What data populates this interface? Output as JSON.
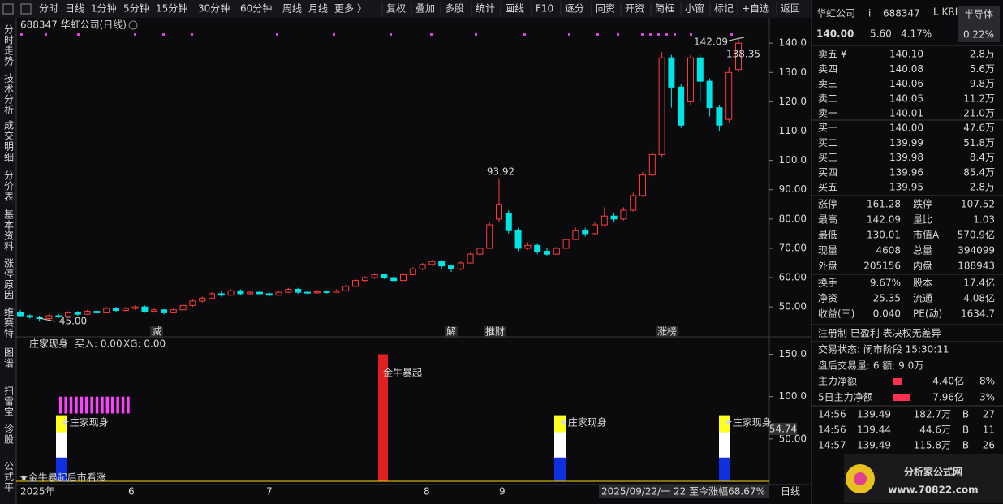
{
  "toolbar": {
    "left": [
      "分时",
      "日线",
      "1分钟",
      "5分钟",
      "15分钟",
      "30分钟",
      "60分钟",
      "周线",
      "月线",
      "更多 〉"
    ],
    "right": [
      "复权",
      "叠加",
      "多股",
      "统计",
      "画线",
      "F10",
      "逐分",
      "同资",
      "开资",
      "简框",
      "小窗",
      "标记",
      "+自选",
      "返回"
    ]
  },
  "side_tabs": [
    "分时走势",
    "技术分析",
    "成交明细",
    "分价表",
    "基本资料",
    "涨停原因",
    "维赛特",
    "图谱",
    "扫雷宝",
    "诊股",
    "公式平"
  ],
  "chart_data": [
    {
      "type": "candlestick",
      "title": "688347 华虹公司(日线)",
      "up_color": "#ff3c3c",
      "down_color": "#00e4e4",
      "ylim": [
        39.8,
        144.2
      ],
      "yticks": [
        {
          "value": 140,
          "label": "140.0"
        },
        {
          "value": 130,
          "label": "130.0"
        },
        {
          "value": 120,
          "label": "120.0"
        },
        {
          "value": 110,
          "label": "110.0"
        },
        {
          "value": 100,
          "label": "100.0"
        },
        {
          "value": 90,
          "label": "90.00"
        },
        {
          "value": 80,
          "label": "80.00"
        },
        {
          "value": 70,
          "label": "70.00"
        },
        {
          "value": 60,
          "label": "60.00"
        },
        {
          "value": 50,
          "label": "50.00"
        }
      ],
      "candles": [
        [
          48,
          47,
          46.5,
          49
        ],
        [
          47,
          46.5,
          46,
          47.5
        ],
        [
          46.5,
          46,
          45,
          47
        ],
        [
          46,
          47,
          45.5,
          47.5
        ],
        [
          47,
          46.8,
          46.2,
          47.6
        ],
        [
          46.8,
          48,
          46.5,
          48.5
        ],
        [
          48,
          47.5,
          47,
          48.6
        ],
        [
          47.5,
          48.5,
          47.2,
          49
        ],
        [
          48.5,
          48,
          47.5,
          49
        ],
        [
          48,
          49.5,
          47.8,
          50
        ],
        [
          49.5,
          48.8,
          48.3,
          50
        ],
        [
          48.8,
          49.5,
          48.5,
          50
        ],
        [
          49.5,
          50,
          49,
          50.5
        ],
        [
          50,
          48.5,
          48,
          50.5
        ],
        [
          48.5,
          49,
          48,
          49.5
        ],
        [
          49,
          48,
          47.5,
          49.3
        ],
        [
          48,
          49,
          47.8,
          49.5
        ],
        [
          49,
          50.5,
          48.8,
          51
        ],
        [
          50.5,
          52,
          50,
          52.5
        ],
        [
          52,
          53,
          51.5,
          53.5
        ],
        [
          53,
          54.5,
          52.8,
          55
        ],
        [
          54.5,
          54,
          53.5,
          55.5
        ],
        [
          54,
          55.5,
          53.8,
          56
        ],
        [
          55.5,
          54.5,
          54,
          56
        ],
        [
          54.5,
          55,
          54,
          55.5
        ],
        [
          55,
          54.5,
          54,
          55.5
        ],
        [
          54.5,
          54,
          53.5,
          55
        ],
        [
          54,
          55,
          53.8,
          55.5
        ],
        [
          55,
          56,
          54.8,
          56.5
        ],
        [
          56,
          55,
          54.5,
          56.5
        ],
        [
          55,
          54.8,
          54.2,
          55.5
        ],
        [
          54.8,
          55.2,
          54.5,
          55.8
        ],
        [
          55.2,
          55,
          54.5,
          55.6
        ],
        [
          55,
          55.5,
          54.8,
          56
        ],
        [
          55.5,
          57,
          55.2,
          57.5
        ],
        [
          57,
          59,
          56.8,
          59.5
        ],
        [
          59,
          60,
          58.5,
          60.5
        ],
        [
          60,
          61,
          59.5,
          61.5
        ],
        [
          61,
          60,
          59.5,
          61.2
        ],
        [
          60,
          59,
          58.5,
          60.5
        ],
        [
          59,
          61,
          58.8,
          61.5
        ],
        [
          61,
          63,
          60.8,
          63.5
        ],
        [
          63,
          64.5,
          62.5,
          65
        ],
        [
          64.5,
          65.5,
          64,
          66
        ],
        [
          65.5,
          64,
          63,
          66
        ],
        [
          64,
          63,
          62,
          64.5
        ],
        [
          63,
          65,
          62.5,
          65.5
        ],
        [
          65,
          68,
          64.8,
          68.5
        ],
        [
          68,
          70,
          67.5,
          71
        ],
        [
          70,
          78,
          69.8,
          79
        ],
        [
          80,
          85,
          79,
          93.92
        ],
        [
          82,
          76,
          75,
          83
        ],
        [
          76,
          70,
          69,
          77
        ],
        [
          70,
          71,
          69.5,
          72
        ],
        [
          71,
          69,
          68,
          71.5
        ],
        [
          69,
          68,
          67.5,
          70
        ],
        [
          68,
          70,
          67.8,
          70.5
        ],
        [
          70,
          73,
          69.8,
          73.5
        ],
        [
          73,
          76,
          72.8,
          77
        ],
        [
          76,
          75,
          74,
          77
        ],
        [
          75,
          78,
          74.8,
          79
        ],
        [
          78,
          81,
          77.5,
          84
        ],
        [
          81,
          80,
          79,
          82
        ],
        [
          80,
          83,
          79.5,
          84
        ],
        [
          83,
          88,
          82.5,
          89
        ],
        [
          88,
          95,
          87.5,
          96
        ],
        [
          95,
          102,
          94.5,
          103
        ],
        [
          102,
          135,
          101,
          137
        ],
        [
          135,
          125,
          118,
          136
        ],
        [
          125,
          112,
          111,
          126
        ],
        [
          120,
          135,
          119,
          136
        ],
        [
          135,
          127,
          120,
          136
        ],
        [
          127,
          118,
          115,
          128
        ],
        [
          118,
          112,
          110,
          119
        ],
        [
          114,
          130,
          113,
          132
        ],
        [
          131,
          140,
          130,
          142.09
        ]
      ],
      "annotations": [
        "93.92",
        "142.09",
        "138.35",
        "45.00"
      ],
      "events": [
        "减",
        "解",
        "推财",
        "涨榜"
      ],
      "x_labels": [
        "2025年",
        "6",
        "7",
        "8",
        "9"
      ]
    },
    {
      "type": "bar",
      "title": "庄家现身",
      "legend": [
        "买入: 0.00",
        "XG: 0.00"
      ],
      "ylim": [
        0,
        161
      ],
      "yticks": [
        {
          "value": 150,
          "label": "150.0"
        },
        {
          "value": 100,
          "label": "100.0"
        },
        {
          "value": 50,
          "label": "50.00"
        }
      ],
      "current": "54.74",
      "pink_bars": [
        [
          80,
          100
        ],
        [
          80,
          100
        ],
        [
          80,
          100
        ],
        [
          80,
          100
        ],
        [
          80,
          100
        ],
        [
          80,
          100
        ],
        [
          80,
          100
        ],
        [
          80,
          100
        ],
        [
          80,
          100
        ],
        [
          80,
          100
        ],
        [
          80,
          100
        ],
        [
          80,
          100
        ],
        [
          80,
          100
        ],
        [
          80,
          100
        ]
      ],
      "surge": {
        "label": "金牛暴起",
        "value": 150
      },
      "signals": [
        {
          "label": "★庄家现身",
          "blue": 28,
          "white": 30,
          "yellow": 20
        },
        {
          "label": "★庄家现身",
          "blue": 28,
          "white": 30,
          "yellow": 20
        },
        {
          "label": "★庄家现身",
          "blue": 28,
          "white": 30,
          "yellow": 20
        }
      ],
      "bottom_note": "★金牛暴起后市看涨"
    }
  ],
  "status_bar": {
    "info": "2025/09/22/一 22 至今涨幅68.67%",
    "period": "日线"
  },
  "panel": {
    "name": "华虹公司",
    "icon": "i",
    "code": "688347",
    "tag": "L KRI",
    "sector": "半导体",
    "price": "140.00",
    "change": "5.60",
    "pct": "4.17%",
    "sector_pct": "0.22%",
    "sells": [
      [
        "卖五 ¥",
        "140.10",
        "2.8万"
      ],
      [
        "卖四",
        "140.08",
        "5.6万"
      ],
      [
        "卖三",
        "140.06",
        "9.8万"
      ],
      [
        "卖二",
        "140.05",
        "11.2万"
      ],
      [
        "卖一",
        "140.01",
        "21.0万"
      ]
    ],
    "buys": [
      [
        "买一",
        "140.00",
        "47.6万"
      ],
      [
        "买二",
        "139.99",
        "51.8万"
      ],
      [
        "买三",
        "139.98",
        "8.4万"
      ],
      [
        "买四",
        "139.96",
        "85.4万"
      ],
      [
        "买五",
        "139.95",
        "2.8万"
      ]
    ],
    "stats": [
      [
        "涨停",
        "161.28",
        "跌停",
        "107.52"
      ],
      [
        "最高",
        "142.09",
        "量比",
        "1.03"
      ],
      [
        "最低",
        "130.01",
        "市值A",
        "570.9亿"
      ],
      [
        "现量",
        "4608",
        "总量",
        "394099"
      ],
      [
        "外盘",
        "205156",
        "内盘",
        "188943"
      ],
      [
        "换手",
        "9.67%",
        "股本",
        "17.4亿"
      ],
      [
        "净资",
        "25.35",
        "流通",
        "4.08亿"
      ],
      [
        "收益(三)",
        "0.040",
        "PE(动)",
        "1634.7"
      ]
    ],
    "tags": "注册制 已盈利 表决权无差异",
    "trade_state": "交易状态: 闭市阶段 15:30:11",
    "after_hours": "盘后交易量: 6 额: 9.0万",
    "flows": [
      [
        "主力净额",
        "4.40亿",
        "8%"
      ],
      [
        "5日主力净额",
        "7.96亿",
        "3%"
      ]
    ],
    "ticks": [
      [
        "14:56",
        "139.49",
        "182.7万",
        "B",
        "27"
      ],
      [
        "14:56",
        "139.44",
        "44.6万",
        "B",
        "11"
      ],
      [
        "14:57",
        "139.49",
        "115.8万",
        "B",
        "26"
      ]
    ],
    "logo": "分析家公式网",
    "site": "www.70822.com"
  }
}
